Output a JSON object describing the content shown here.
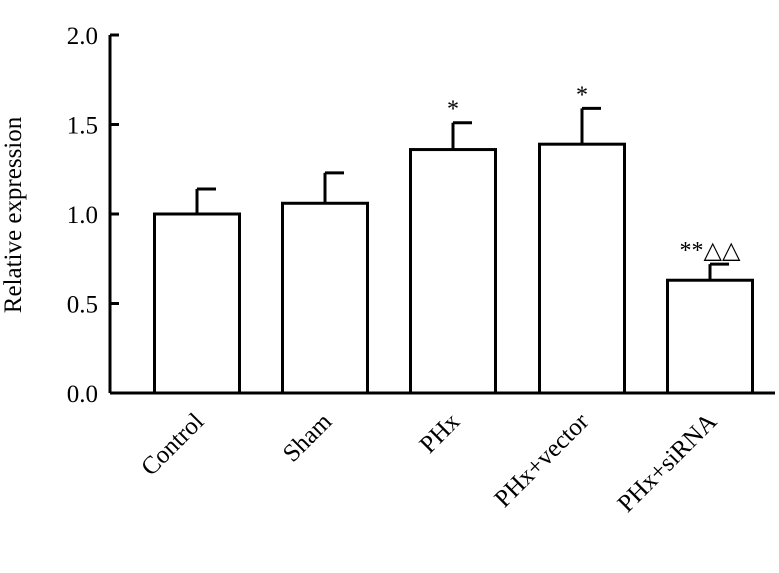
{
  "chart_data": {
    "type": "bar",
    "title": "",
    "xlabel": "",
    "ylabel": "Relative expression",
    "ylim": [
      0,
      2.0
    ],
    "yticks": [
      0.0,
      0.5,
      1.0,
      1.5,
      2.0
    ],
    "ytick_labels": [
      "0.0",
      "0.5",
      "1.0",
      "1.5",
      "2.0"
    ],
    "categories": [
      "Control",
      "Sham",
      "PHx",
      "PHx+vector",
      "PHx+siRNA"
    ],
    "values": [
      1.0,
      1.06,
      1.36,
      1.39,
      0.63
    ],
    "errors": [
      0.14,
      0.17,
      0.15,
      0.2,
      0.09
    ],
    "annotations": [
      "",
      "",
      "*",
      "*",
      "**△△"
    ],
    "bar_fill": "#ffffff",
    "bar_stroke": "#000000",
    "grid": false,
    "legend": "none"
  }
}
